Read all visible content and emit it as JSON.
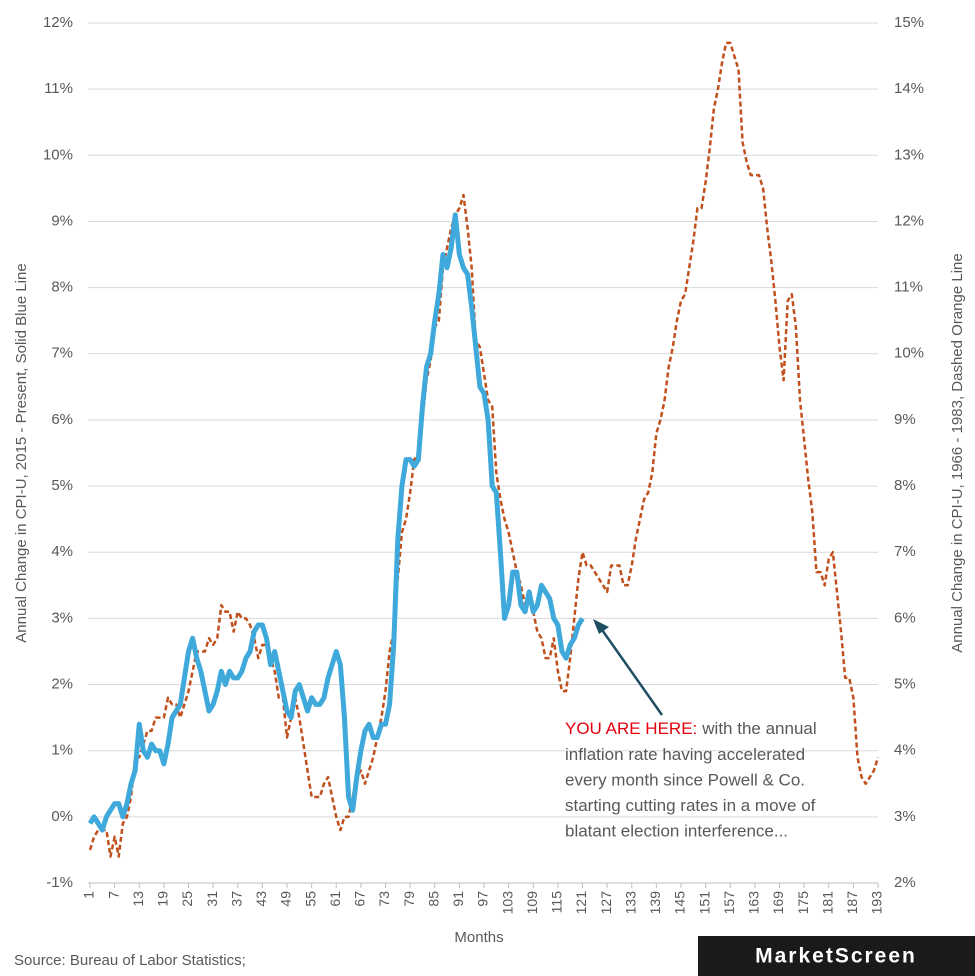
{
  "chart_data": {
    "type": "line",
    "y_label": "Annual Change in CPI-U, 2015 - Present, Solid Blue Line",
    "y2_label": "Annual Change in CPI-U, 1966 - 1983, Dashed Orange Line",
    "x_label": "Months",
    "source": "Source: Bureau of Labor Statistics;",
    "logo": "MarketScreen",
    "annotation": {
      "highlight": "YOU ARE HERE:",
      "lines": [
        "with the annual",
        "inflation rate having accelerated",
        "every month since Powell & Co.",
        "starting cutting rates in a move of",
        "blatant election interference..."
      ],
      "highlight_color": "#e3000f"
    },
    "grid": true,
    "xlim": [
      1,
      193
    ],
    "xticks": [
      1,
      7,
      13,
      19,
      25,
      31,
      37,
      43,
      49,
      55,
      61,
      67,
      73,
      79,
      85,
      91,
      97,
      103,
      109,
      115,
      121,
      127,
      133,
      139,
      145,
      151,
      157,
      163,
      169,
      175,
      181,
      187,
      193
    ],
    "ylim": [
      -1,
      12
    ],
    "yticks": [
      {
        "value": -1,
        "label": "-1%"
      },
      {
        "value": 0,
        "label": "0%"
      },
      {
        "value": 1,
        "label": "1%"
      },
      {
        "value": 2,
        "label": "2%"
      },
      {
        "value": 3,
        "label": "3%"
      },
      {
        "value": 4,
        "label": "4%"
      },
      {
        "value": 5,
        "label": "5%"
      },
      {
        "value": 6,
        "label": "6%"
      },
      {
        "value": 7,
        "label": "7%"
      },
      {
        "value": 8,
        "label": "8%"
      },
      {
        "value": 9,
        "label": "9%"
      },
      {
        "value": 10,
        "label": "10%"
      },
      {
        "value": 11,
        "label": "11%"
      },
      {
        "value": 12,
        "label": "12%"
      }
    ],
    "y2lim": [
      2,
      15
    ],
    "y2ticks": [
      {
        "value": 2,
        "label": "2%"
      },
      {
        "value": 3,
        "label": "3%"
      },
      {
        "value": 4,
        "label": "4%"
      },
      {
        "value": 5,
        "label": "5%"
      },
      {
        "value": 6,
        "label": "6%"
      },
      {
        "value": 7,
        "label": "7%"
      },
      {
        "value": 8,
        "label": "8%"
      },
      {
        "value": 9,
        "label": "9%"
      },
      {
        "value": 10,
        "label": "10%"
      },
      {
        "value": 11,
        "label": "11%"
      },
      {
        "value": 12,
        "label": "12%"
      },
      {
        "value": 13,
        "label": "13%"
      },
      {
        "value": 14,
        "label": "14%"
      },
      {
        "value": 15,
        "label": "15%"
      }
    ],
    "x": [
      1,
      2,
      3,
      4,
      5,
      6,
      7,
      8,
      9,
      10,
      11,
      12,
      13,
      14,
      15,
      16,
      17,
      18,
      19,
      20,
      21,
      22,
      23,
      24,
      25,
      26,
      27,
      28,
      29,
      30,
      31,
      32,
      33,
      34,
      35,
      36,
      37,
      38,
      39,
      40,
      41,
      42,
      43,
      44,
      45,
      46,
      47,
      48,
      49,
      50,
      51,
      52,
      53,
      54,
      55,
      56,
      57,
      58,
      59,
      60,
      61,
      62,
      63,
      64,
      65,
      66,
      67,
      68,
      69,
      70,
      71,
      72,
      73,
      74,
      75,
      76,
      77,
      78,
      79,
      80,
      81,
      82,
      83,
      84,
      85,
      86,
      87,
      88,
      89,
      90,
      91,
      92,
      93,
      94,
      95,
      96,
      97,
      98,
      99,
      100,
      101,
      102,
      103,
      104,
      105,
      106,
      107,
      108,
      109,
      110,
      111,
      112,
      113,
      114,
      115,
      116,
      117,
      118,
      119,
      120,
      121,
      122,
      123,
      124,
      125,
      126,
      127,
      128,
      129,
      130,
      131,
      132,
      133,
      134,
      135,
      136,
      137,
      138,
      139,
      140,
      141,
      142,
      143,
      144,
      145,
      146,
      147,
      148,
      149,
      150,
      151,
      152,
      153,
      154,
      155,
      156,
      157,
      158,
      159,
      160,
      161,
      162,
      163,
      164,
      165,
      166,
      167,
      168,
      169,
      170,
      171,
      172,
      173,
      174,
      175,
      176,
      177,
      178,
      179,
      180,
      181,
      182,
      183,
      184,
      185,
      186,
      187,
      188,
      189,
      190,
      191,
      192,
      193
    ],
    "series": [
      {
        "color": "#3fa9dc",
        "dashed": false,
        "axis": "y",
        "values": [
          -0.1,
          0.0,
          -0.1,
          -0.2,
          0.0,
          0.1,
          0.2,
          0.2,
          0.0,
          0.2,
          0.5,
          0.7,
          1.4,
          1.0,
          0.9,
          1.1,
          1.0,
          1.0,
          0.8,
          1.1,
          1.5,
          1.6,
          1.7,
          2.1,
          2.5,
          2.7,
          2.4,
          2.2,
          1.9,
          1.6,
          1.7,
          1.9,
          2.2,
          2.0,
          2.2,
          2.1,
          2.1,
          2.2,
          2.4,
          2.5,
          2.8,
          2.9,
          2.9,
          2.7,
          2.3,
          2.5,
          2.2,
          1.9,
          1.6,
          1.5,
          1.9,
          2.0,
          1.8,
          1.6,
          1.8,
          1.7,
          1.7,
          1.8,
          2.1,
          2.3,
          2.5,
          2.3,
          1.5,
          0.3,
          0.1,
          0.6,
          1.0,
          1.3,
          1.4,
          1.2,
          1.2,
          1.4,
          1.4,
          1.7,
          2.6,
          4.2,
          5.0,
          5.4,
          5.4,
          5.3,
          5.4,
          6.2,
          6.8,
          7.0,
          7.5,
          7.9,
          8.5,
          8.3,
          8.6,
          9.1,
          8.5,
          8.3,
          8.2,
          7.7,
          7.1,
          6.5,
          6.4,
          6.0,
          5.0,
          4.9,
          4.0,
          3.0,
          3.2,
          3.7,
          3.7,
          3.2,
          3.1,
          3.4,
          3.1,
          3.2,
          3.5,
          3.4,
          3.3,
          3.0,
          2.9,
          2.5,
          2.4,
          2.6,
          2.7,
          2.9,
          3.0,
          null,
          null,
          null,
          null,
          null,
          null,
          null,
          null,
          null,
          null,
          null,
          null,
          null,
          null,
          null,
          null,
          null,
          null,
          null,
          null,
          null,
          null,
          null,
          null,
          null,
          null,
          null,
          null,
          null,
          null,
          null,
          null,
          null,
          null,
          null,
          null,
          null,
          null,
          null,
          null,
          null,
          null,
          null,
          null,
          null,
          null,
          null,
          null,
          null,
          null,
          null,
          null,
          null,
          null,
          null,
          null,
          null,
          null,
          null,
          null,
          null,
          null,
          null,
          null,
          null,
          null,
          null,
          null,
          null,
          null,
          null,
          null
        ]
      },
      {
        "color": "#c0501c",
        "dashed": true,
        "axis": "y2",
        "values": [
          2.5,
          2.7,
          2.8,
          2.8,
          2.8,
          2.4,
          2.7,
          2.4,
          2.9,
          3.0,
          3.3,
          3.9,
          3.9,
          4.1,
          4.3,
          4.3,
          4.5,
          4.5,
          4.5,
          4.8,
          4.7,
          4.7,
          4.5,
          4.7,
          4.9,
          5.2,
          5.5,
          5.5,
          5.5,
          5.7,
          5.6,
          5.7,
          6.2,
          6.1,
          6.1,
          5.8,
          6.1,
          6.0,
          6.0,
          5.9,
          5.7,
          5.4,
          5.6,
          5.6,
          5.4,
          5.2,
          4.8,
          4.8,
          4.2,
          4.5,
          4.8,
          4.5,
          4.1,
          3.7,
          3.3,
          3.3,
          3.3,
          3.5,
          3.6,
          3.3,
          3.0,
          2.8,
          3.0,
          3.0,
          3.3,
          3.6,
          3.7,
          3.5,
          3.7,
          3.9,
          4.2,
          4.5,
          4.9,
          5.5,
          5.8,
          6.6,
          7.3,
          7.5,
          7.9,
          8.4,
          8.5,
          9.0,
          9.6,
          9.9,
          10.4,
          10.5,
          11.3,
          11.6,
          11.9,
          12.1,
          12.2,
          12.4,
          11.9,
          11.3,
          10.2,
          10.1,
          9.7,
          9.3,
          9.2,
          8.2,
          7.8,
          7.5,
          7.3,
          7.0,
          6.7,
          6.5,
          6.2,
          6.3,
          6.1,
          5.8,
          5.7,
          5.4,
          5.4,
          5.7,
          5.2,
          4.9,
          4.9,
          5.4,
          6.0,
          6.6,
          7.0,
          6.8,
          6.8,
          6.7,
          6.6,
          6.5,
          6.4,
          6.8,
          6.8,
          6.8,
          6.5,
          6.5,
          6.8,
          7.2,
          7.5,
          7.8,
          7.9,
          8.2,
          8.8,
          9.0,
          9.3,
          9.8,
          10.1,
          10.5,
          10.8,
          10.9,
          11.3,
          11.7,
          12.2,
          12.2,
          12.6,
          13.1,
          13.7,
          14.0,
          14.4,
          14.7,
          14.7,
          14.5,
          14.3,
          13.2,
          12.9,
          12.7,
          12.7,
          12.7,
          12.5,
          11.9,
          11.4,
          10.8,
          10.1,
          9.6,
          10.8,
          10.9,
          10.4,
          9.3,
          8.7,
          8.1,
          7.6,
          6.7,
          6.7,
          6.5,
          6.9,
          7.0,
          6.4,
          5.8,
          5.1,
          5.1,
          4.8,
          3.9,
          3.6,
          3.5,
          3.6,
          3.7,
          3.9
        ]
      }
    ]
  }
}
